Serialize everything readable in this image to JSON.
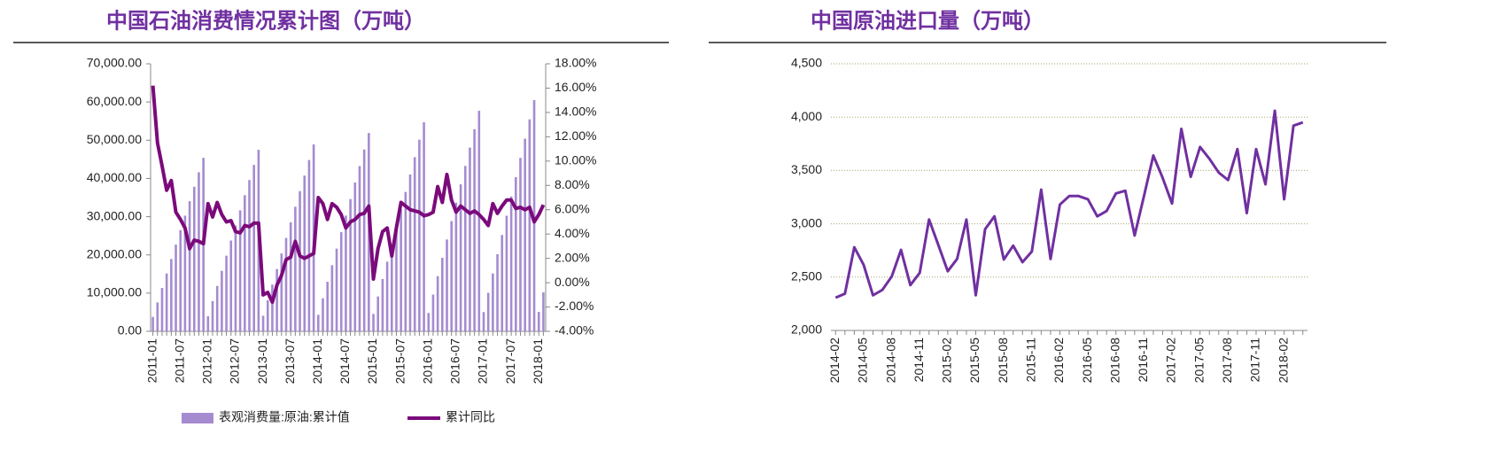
{
  "chart_data": [
    {
      "type": "bar",
      "title": "中国石油消费情况累计图（万吨）",
      "categories": [
        "2011-01",
        null,
        null,
        null,
        null,
        null,
        "2011-07",
        null,
        null,
        null,
        null,
        null,
        "2012-01",
        null,
        null,
        null,
        null,
        null,
        "2012-07",
        null,
        null,
        null,
        null,
        null,
        "2013-01",
        null,
        null,
        null,
        null,
        null,
        "2013-07",
        null,
        null,
        null,
        null,
        null,
        "2014-01",
        null,
        null,
        null,
        null,
        null,
        "2014-07",
        null,
        null,
        null,
        null,
        null,
        "2015-01",
        null,
        null,
        null,
        null,
        null,
        "2015-07",
        null,
        null,
        null,
        null,
        null,
        "2016-01",
        null,
        null,
        null,
        null,
        null,
        "2016-07",
        null,
        null,
        null,
        null,
        null,
        "2017-01",
        null,
        null,
        null,
        null,
        null,
        "2017-07",
        null,
        null,
        null,
        null,
        null,
        "2018-01",
        null
      ],
      "series": [
        {
          "name": "表观消费量:原油:累计值",
          "type": "bar",
          "color": "#a58bd0",
          "values": [
            3780,
            7560,
            11350,
            15130,
            18920,
            22700,
            26480,
            30270,
            34050,
            37830,
            41620,
            45400,
            3960,
            7920,
            11880,
            15830,
            19790,
            23750,
            27710,
            31670,
            35630,
            39580,
            43540,
            47500,
            4080,
            8150,
            12230,
            16300,
            20380,
            24450,
            28530,
            32600,
            36680,
            40750,
            44830,
            48900,
            4330,
            8650,
            12980,
            17300,
            21630,
            25950,
            30280,
            34600,
            38930,
            43250,
            47580,
            51900,
            4560,
            9120,
            13680,
            18230,
            22790,
            27350,
            31910,
            36470,
            41030,
            45580,
            50140,
            54700,
            4810,
            9620,
            14430,
            19230,
            24040,
            28850,
            33660,
            38470,
            43280,
            48080,
            52890,
            57700,
            5040,
            10080,
            15130,
            20170,
            25210,
            30250,
            35290,
            40330,
            45380,
            50420,
            55460,
            60500,
            5100,
            10200
          ]
        },
        {
          "name": "累计同比",
          "type": "line",
          "axis": "y2",
          "color": "#7b0a7b",
          "values": [
            16.2,
            11.5,
            9.6,
            7.6,
            8.4,
            5.8,
            5.2,
            4.5,
            2.8,
            3.5,
            3.4,
            3.2,
            6.5,
            5.4,
            6.6,
            5.6,
            5.0,
            5.1,
            4.2,
            4.1,
            4.7,
            4.6,
            4.9,
            4.9,
            -1.0,
            -0.8,
            -1.6,
            -0.2,
            0.6,
            1.9,
            2.1,
            3.4,
            2.2,
            2.0,
            2.2,
            2.4,
            7.0,
            6.5,
            5.2,
            6.5,
            6.2,
            5.6,
            4.5,
            5.0,
            5.2,
            5.6,
            5.7,
            6.3,
            0.3,
            2.8,
            4.2,
            4.5,
            2.2,
            4.5,
            6.6,
            6.3,
            6.0,
            5.9,
            5.8,
            5.5,
            5.6,
            5.8,
            7.9,
            6.6,
            8.9,
            6.8,
            5.8,
            6.3,
            6.0,
            5.7,
            5.9,
            5.6,
            5.2,
            4.7,
            6.5,
            5.7,
            6.3,
            6.8,
            6.8,
            6.1,
            6.2,
            6.0,
            6.2,
            5.0,
            5.6,
            6.4
          ]
        }
      ],
      "ylim": [
        0,
        70000
      ],
      "yticks": [
        {
          "value": 0,
          "label": "0.00"
        },
        {
          "value": 10000,
          "label": "10,000.00"
        },
        {
          "value": 20000,
          "label": "20,000.00"
        },
        {
          "value": 30000,
          "label": "30,000.00"
        },
        {
          "value": 40000,
          "label": "40,000.00"
        },
        {
          "value": 50000,
          "label": "50,000.00"
        },
        {
          "value": 60000,
          "label": "60,000.00"
        },
        {
          "value": 70000,
          "label": "70,000.00"
        }
      ],
      "y2lim": [
        -4,
        18
      ],
      "y2ticks": [
        {
          "value": -4,
          "label": "-4.00%"
        },
        {
          "value": -2,
          "label": "-2.00%"
        },
        {
          "value": 0,
          "label": "0.00%"
        },
        {
          "value": 2,
          "label": "2.00%"
        },
        {
          "value": 4,
          "label": "4.00%"
        },
        {
          "value": 6,
          "label": "6.00%"
        },
        {
          "value": 8,
          "label": "8.00%"
        },
        {
          "value": 10,
          "label": "10.00%"
        },
        {
          "value": 12,
          "label": "12.00%"
        },
        {
          "value": 14,
          "label": "14.00%"
        },
        {
          "value": 16,
          "label": "16.00%"
        },
        {
          "value": 18,
          "label": "18.00%"
        }
      ],
      "legend": "bottom",
      "grid": false
    },
    {
      "type": "line",
      "title": "中国原油进口量（万吨）",
      "categories": [
        "2014-02",
        null,
        null,
        "2014-05",
        null,
        null,
        "2014-08",
        null,
        null,
        "2014-11",
        null,
        null,
        "2015-02",
        null,
        null,
        "2015-05",
        null,
        null,
        "2015-08",
        null,
        null,
        "2015-11",
        null,
        null,
        "2016-02",
        null,
        null,
        "2016-05",
        null,
        null,
        "2016-08",
        null,
        null,
        "2016-11",
        null,
        null,
        "2017-02",
        null,
        null,
        "2017-05",
        null,
        null,
        "2017-08",
        null,
        null,
        "2017-11",
        null,
        null,
        "2018-02",
        null,
        null
      ],
      "values": [
        2307,
        2345,
        2780,
        2615,
        2330,
        2380,
        2505,
        2755,
        2425,
        2540,
        3040,
        2800,
        2555,
        2670,
        3040,
        2330,
        2950,
        3070,
        2665,
        2795,
        2640,
        2740,
        3320,
        2670,
        3180,
        3260,
        3260,
        3230,
        3070,
        3120,
        3285,
        3310,
        2890,
        3260,
        3640,
        3430,
        3190,
        3890,
        3440,
        3720,
        3610,
        3480,
        3410,
        3700,
        3100,
        3700,
        3370,
        4060,
        3230,
        3920,
        3950
      ],
      "color": "#7030a0",
      "ylim": [
        2000,
        4500
      ],
      "yticks": [
        {
          "value": 2000,
          "label": "2,000"
        },
        {
          "value": 2500,
          "label": "2,500"
        },
        {
          "value": 3000,
          "label": "3,000"
        },
        {
          "value": 3500,
          "label": "3,500"
        },
        {
          "value": 4000,
          "label": "4,000"
        },
        {
          "value": 4500,
          "label": "4,500"
        }
      ],
      "grid": true
    }
  ]
}
